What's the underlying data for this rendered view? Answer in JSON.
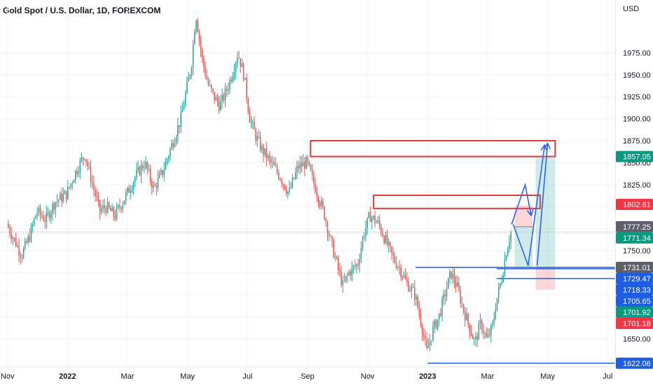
{
  "chart_data": {
    "type": "candlestick",
    "title": "Gold Spot / U.S. Dollar, 1D, FOREXCOM",
    "currency": "USD",
    "ylim": [
      1618,
      2035
    ],
    "y_ticks": [
      1650,
      1675,
      1700,
      1725,
      1750,
      1775,
      1800,
      1825,
      1850,
      1875,
      1900,
      1925,
      1950,
      1975
    ],
    "y_tick_labels": [
      "1650.00",
      "1675.00",
      "1700.00",
      "1725.00",
      "1750.00",
      "1775.00",
      "1800.00",
      "1825.00",
      "1850.00",
      "1875.00",
      "1900.00",
      "1925.00",
      "1950.00",
      "1975.00"
    ],
    "x_ticks": [
      "Nov",
      "2022",
      "Mar",
      "May",
      "Jul",
      "Sep",
      "Nov",
      "2023",
      "Mar",
      "May",
      "Jul"
    ],
    "x_tick_months": [
      0,
      2,
      4,
      6,
      8,
      10,
      12,
      14,
      16,
      18,
      20
    ],
    "month_span": [
      -0.25,
      20.25
    ],
    "colors": {
      "up": "#26a69a",
      "down": "#ef5350",
      "zone": "#e53935",
      "level": "#1e5ee6",
      "arrow": "#2962ff",
      "profit": "#26a69a",
      "loss": "#f23645"
    },
    "price_path": [
      [
        0.0,
        1780
      ],
      [
        0.5,
        1745
      ],
      [
        0.8,
        1770
      ],
      [
        1.0,
        1795
      ],
      [
        1.3,
        1785
      ],
      [
        1.6,
        1805
      ],
      [
        2.0,
        1815
      ],
      [
        2.3,
        1840
      ],
      [
        2.6,
        1860
      ],
      [
        2.9,
        1820
      ],
      [
        3.1,
        1795
      ],
      [
        3.3,
        1800
      ],
      [
        3.6,
        1790
      ],
      [
        3.9,
        1808
      ],
      [
        4.3,
        1835
      ],
      [
        4.6,
        1850
      ],
      [
        4.9,
        1820
      ],
      [
        5.2,
        1840
      ],
      [
        5.5,
        1870
      ],
      [
        5.8,
        1900
      ],
      [
        6.0,
        1935
      ],
      [
        6.15,
        1960
      ],
      [
        6.3,
        2020
      ],
      [
        6.5,
        1970
      ],
      [
        6.7,
        1940
      ],
      [
        6.9,
        1925
      ],
      [
        7.1,
        1915
      ],
      [
        7.3,
        1930
      ],
      [
        7.5,
        1950
      ],
      [
        7.7,
        1975
      ],
      [
        7.9,
        1950
      ],
      [
        8.1,
        1900
      ],
      [
        8.3,
        1880
      ],
      [
        8.5,
        1865
      ],
      [
        8.8,
        1850
      ],
      [
        9.1,
        1835
      ],
      [
        9.4,
        1815
      ],
      [
        9.7,
        1845
      ],
      [
        10.0,
        1850
      ],
      [
        10.2,
        1830
      ],
      [
        10.4,
        1810
      ],
      [
        10.6,
        1790
      ],
      [
        10.8,
        1760
      ],
      [
        11.0,
        1735
      ],
      [
        11.2,
        1710
      ],
      [
        11.4,
        1725
      ],
      [
        11.7,
        1735
      ],
      [
        11.9,
        1770
      ],
      [
        12.1,
        1790
      ],
      [
        12.4,
        1780
      ],
      [
        12.7,
        1755
      ],
      [
        12.9,
        1740
      ],
      [
        13.1,
        1730
      ],
      [
        13.3,
        1715
      ],
      [
        13.6,
        1700
      ],
      [
        13.8,
        1670
      ],
      [
        14.0,
        1635
      ],
      [
        14.2,
        1660
      ],
      [
        14.4,
        1675
      ],
      [
        14.6,
        1700
      ],
      [
        14.8,
        1725
      ],
      [
        15.0,
        1710
      ],
      [
        15.2,
        1685
      ],
      [
        15.4,
        1665
      ],
      [
        15.6,
        1645
      ],
      [
        15.8,
        1668
      ],
      [
        16.0,
        1648
      ],
      [
        16.2,
        1665
      ],
      [
        16.3,
        1690
      ],
      [
        16.5,
        1720
      ],
      [
        16.65,
        1750
      ],
      [
        16.8,
        1771.34
      ]
    ],
    "levels": [
      {
        "value": 1731.01,
        "label": "1731.01",
        "from_month": 13.6
      },
      {
        "value": 1729.47,
        "label": "1729.47",
        "from_month": 16.3
      },
      {
        "value": 1718.33,
        "label": "1718.33",
        "from_month": 16.3
      },
      {
        "value": 1622.06,
        "label": "1622.06",
        "from_month": 14.0
      }
    ],
    "price_tags": [
      {
        "value": 1857.05,
        "label": "1857.05",
        "color": "#089981"
      },
      {
        "value": 1802.61,
        "label": "1802.61",
        "color": "#f23645"
      },
      {
        "value": 1777.25,
        "label": "1777.25",
        "color": "#5d606b"
      },
      {
        "value": 1771.34,
        "label": "1771.34",
        "color": "#089981"
      },
      {
        "value": 1731.01,
        "label": "1731.01",
        "color": "#5d606b"
      },
      {
        "value": 1729.47,
        "label": "1729.47",
        "color": "#1e5ee6"
      },
      {
        "value": 1718.33,
        "label": "1718.33",
        "color": "#1e5ee6"
      },
      {
        "value": 1705.65,
        "label": "1705.65",
        "color": "#1e5ee6"
      },
      {
        "value": 1701.92,
        "label": "1701.92",
        "color": "#089981"
      },
      {
        "value": 1701.18,
        "label": "1701.18",
        "color": "#f23645"
      },
      {
        "value": 1622.06,
        "label": "1622.06",
        "color": "#1e5ee6"
      }
    ],
    "zones": [
      {
        "m0": 10.1,
        "m1": 18.25,
        "y0": 1857.05,
        "y1": 1875
      },
      {
        "m0": 12.2,
        "m1": 17.75,
        "y0": 1798,
        "y1": 1813
      }
    ],
    "positions": [
      {
        "m0": 16.9,
        "m1": 17.5,
        "entry": 1777.25,
        "target": 1731.01,
        "stop": 1801.5,
        "kind": "short"
      },
      {
        "m0": 17.6,
        "m1": 18.25,
        "entry": 1731.01,
        "target": 1857.05,
        "stop": 1705.65,
        "kind": "long"
      }
    ],
    "arrow_paths": [
      [
        [
          16.8,
          1780
        ],
        [
          17.25,
          1825
        ],
        [
          17.45,
          1790
        ]
      ],
      [
        [
          16.85,
          1780
        ],
        [
          17.35,
          1733
        ],
        [
          17.9,
          1870
        ]
      ],
      [
        [
          17.65,
          1733
        ],
        [
          18.0,
          1872
        ]
      ]
    ]
  }
}
